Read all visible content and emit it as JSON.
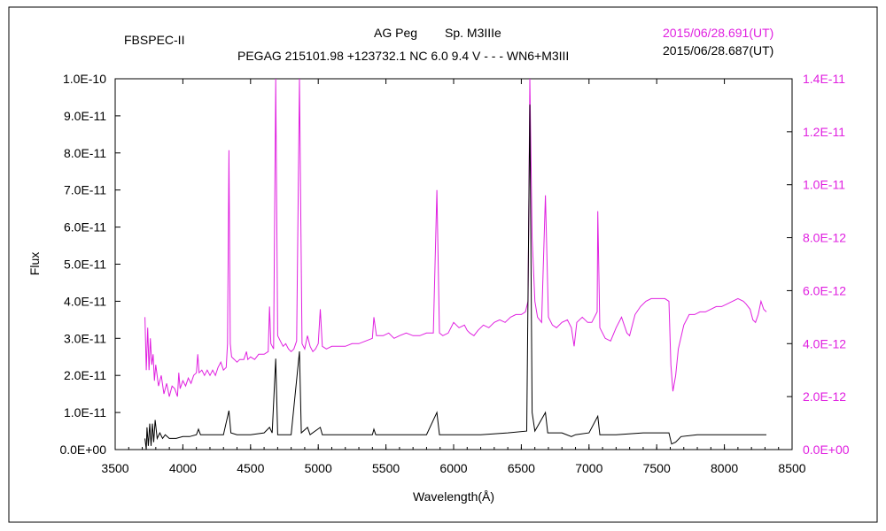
{
  "header": {
    "instrument": "FBSPEC-II",
    "star": "AG Peg",
    "sptype": "Sp. M3IIIe",
    "catalog": "PEGAG 215101.98 +123732.1 NC 6.0 9.4 V - - - WN6+M3III",
    "date_magenta": "2015/06/28.691(UT)",
    "date_black": "2015/06/28.687(UT)"
  },
  "colors": {
    "magenta": "#e020e0",
    "black": "#000000",
    "axis": "#000000"
  },
  "chart_data": {
    "type": "line",
    "xlabel": "Wavelength(Å)",
    "ylabel": "Flux",
    "xlim": [
      3500,
      8500
    ],
    "ylim_left": [
      0,
      1e-10
    ],
    "ylim_right": [
      0,
      1.4e-11
    ],
    "x_ticks": [
      "3500",
      "4000",
      "4500",
      "5000",
      "5500",
      "6000",
      "6500",
      "7000",
      "7500",
      "8000",
      "8500"
    ],
    "y_ticks_left": [
      "0.0E+00",
      "1.0E-11",
      "2.0E-11",
      "3.0E-11",
      "4.0E-11",
      "5.0E-11",
      "6.0E-11",
      "7.0E-11",
      "8.0E-11",
      "9.0E-11",
      "1.0E-10"
    ],
    "y_ticks_right": [
      "0.0E+00",
      "2.0E-12",
      "4.0E-12",
      "6.0E-12",
      "8.0E-12",
      "1.0E-11",
      "1.2E-11",
      "1.4E-11"
    ],
    "series": [
      {
        "name": "2015/06/28.691(UT)",
        "axis": "right",
        "color": "#e020e0",
        "points": [
          [
            3720,
            5e-12
          ],
          [
            3730,
            3e-12
          ],
          [
            3740,
            4.6e-12
          ],
          [
            3750,
            3e-12
          ],
          [
            3760,
            4.2e-12
          ],
          [
            3770,
            3.2e-12
          ],
          [
            3780,
            3.6e-12
          ],
          [
            3790,
            2.6e-12
          ],
          [
            3800,
            3.2e-12
          ],
          [
            3820,
            2.4e-12
          ],
          [
            3840,
            2.8e-12
          ],
          [
            3860,
            2.1e-12
          ],
          [
            3880,
            2.5e-12
          ],
          [
            3900,
            2e-12
          ],
          [
            3920,
            2.4e-12
          ],
          [
            3940,
            2.3e-12
          ],
          [
            3960,
            2e-12
          ],
          [
            3970,
            2.9e-12
          ],
          [
            3980,
            2.3e-12
          ],
          [
            4000,
            2.6e-12
          ],
          [
            4020,
            2.4e-12
          ],
          [
            4040,
            2.7e-12
          ],
          [
            4060,
            2.5e-12
          ],
          [
            4080,
            2.8e-12
          ],
          [
            4100,
            2.9e-12
          ],
          [
            4110,
            3.6e-12
          ],
          [
            4120,
            2.9e-12
          ],
          [
            4140,
            3e-12
          ],
          [
            4160,
            2.8e-12
          ],
          [
            4180,
            3e-12
          ],
          [
            4200,
            2.8e-12
          ],
          [
            4220,
            3e-12
          ],
          [
            4240,
            2.8e-12
          ],
          [
            4260,
            3.1e-12
          ],
          [
            4280,
            3.3e-12
          ],
          [
            4300,
            3e-12
          ],
          [
            4320,
            3.1e-12
          ],
          [
            4330,
            4e-12
          ],
          [
            4340,
            1.13e-11
          ],
          [
            4350,
            4e-12
          ],
          [
            4360,
            3.5e-12
          ],
          [
            4380,
            3.4e-12
          ],
          [
            4400,
            3.3e-12
          ],
          [
            4420,
            3.4e-12
          ],
          [
            4450,
            3.4e-12
          ],
          [
            4470,
            3.7e-12
          ],
          [
            4480,
            3.4e-12
          ],
          [
            4500,
            3.5e-12
          ],
          [
            4530,
            3.4e-12
          ],
          [
            4560,
            3.6e-12
          ],
          [
            4600,
            3.6e-12
          ],
          [
            4630,
            3.7e-12
          ],
          [
            4640,
            5.4e-12
          ],
          [
            4650,
            4e-12
          ],
          [
            4670,
            3.8e-12
          ],
          [
            4686,
            1.4e-11
          ],
          [
            4700,
            4.3e-12
          ],
          [
            4720,
            4.1e-12
          ],
          [
            4740,
            3.9e-12
          ],
          [
            4760,
            4e-12
          ],
          [
            4780,
            3.8e-12
          ],
          [
            4800,
            3.7e-12
          ],
          [
            4820,
            3.8e-12
          ],
          [
            4840,
            4.1e-12
          ],
          [
            4861,
            1.4e-11
          ],
          [
            4880,
            4e-12
          ],
          [
            4900,
            3.8e-12
          ],
          [
            4920,
            4.3e-12
          ],
          [
            4940,
            3.9e-12
          ],
          [
            4960,
            3.7e-12
          ],
          [
            4980,
            3.8e-12
          ],
          [
            5000,
            4e-12
          ],
          [
            5015,
            5.3e-12
          ],
          [
            5030,
            3.9e-12
          ],
          [
            5060,
            3.8e-12
          ],
          [
            5100,
            3.9e-12
          ],
          [
            5150,
            3.9e-12
          ],
          [
            5200,
            3.9e-12
          ],
          [
            5250,
            4e-12
          ],
          [
            5300,
            4e-12
          ],
          [
            5350,
            4.1e-12
          ],
          [
            5400,
            4.2e-12
          ],
          [
            5411,
            5e-12
          ],
          [
            5430,
            4.3e-12
          ],
          [
            5480,
            4.3e-12
          ],
          [
            5520,
            4.4e-12
          ],
          [
            5560,
            4.2e-12
          ],
          [
            5600,
            4.3e-12
          ],
          [
            5650,
            4.4e-12
          ],
          [
            5700,
            4.3e-12
          ],
          [
            5750,
            4.3e-12
          ],
          [
            5800,
            4.4e-12
          ],
          [
            5850,
            4.4e-12
          ],
          [
            5876,
            9.8e-12
          ],
          [
            5895,
            4.4e-12
          ],
          [
            5920,
            4.3e-12
          ],
          [
            5960,
            4.4e-12
          ],
          [
            6000,
            4.8e-12
          ],
          [
            6040,
            4.6e-12
          ],
          [
            6080,
            4.7e-12
          ],
          [
            6100,
            4.5e-12
          ],
          [
            6120,
            4.4e-12
          ],
          [
            6150,
            4.3e-12
          ],
          [
            6180,
            4.5e-12
          ],
          [
            6220,
            4.7e-12
          ],
          [
            6260,
            4.6e-12
          ],
          [
            6300,
            4.8e-12
          ],
          [
            6340,
            4.9e-12
          ],
          [
            6380,
            4.8e-12
          ],
          [
            6420,
            5e-12
          ],
          [
            6460,
            5.1e-12
          ],
          [
            6500,
            5.1e-12
          ],
          [
            6530,
            5.2e-12
          ],
          [
            6550,
            5.6e-12
          ],
          [
            6563,
            1.4e-11
          ],
          [
            6580,
            8e-12
          ],
          [
            6600,
            5.6e-12
          ],
          [
            6620,
            5e-12
          ],
          [
            6650,
            4.8e-12
          ],
          [
            6678,
            9.6e-12
          ],
          [
            6700,
            5e-12
          ],
          [
            6730,
            4.7e-12
          ],
          [
            6760,
            4.6e-12
          ],
          [
            6800,
            4.8e-12
          ],
          [
            6840,
            4.9e-12
          ],
          [
            6870,
            4.6e-12
          ],
          [
            6890,
            3.9e-12
          ],
          [
            6910,
            4.8e-12
          ],
          [
            6950,
            5e-12
          ],
          [
            6990,
            4.8e-12
          ],
          [
            7020,
            4.8e-12
          ],
          [
            7060,
            5.2e-12
          ],
          [
            7065,
            9e-12
          ],
          [
            7080,
            4.6e-12
          ],
          [
            7120,
            4.2e-12
          ],
          [
            7160,
            4.1e-12
          ],
          [
            7200,
            4.6e-12
          ],
          [
            7240,
            5e-12
          ],
          [
            7280,
            4.4e-12
          ],
          [
            7300,
            4.3e-12
          ],
          [
            7340,
            5.1e-12
          ],
          [
            7380,
            5.4e-12
          ],
          [
            7420,
            5.6e-12
          ],
          [
            7460,
            5.7e-12
          ],
          [
            7500,
            5.7e-12
          ],
          [
            7560,
            5.7e-12
          ],
          [
            7590,
            5.6e-12
          ],
          [
            7605,
            3.2e-12
          ],
          [
            7620,
            2.2e-12
          ],
          [
            7640,
            2.8e-12
          ],
          [
            7660,
            3.8e-12
          ],
          [
            7700,
            4.7e-12
          ],
          [
            7740,
            5.1e-12
          ],
          [
            7780,
            5.1e-12
          ],
          [
            7820,
            5.2e-12
          ],
          [
            7860,
            5.2e-12
          ],
          [
            7900,
            5.3e-12
          ],
          [
            7940,
            5.4e-12
          ],
          [
            7980,
            5.4e-12
          ],
          [
            8020,
            5.5e-12
          ],
          [
            8060,
            5.6e-12
          ],
          [
            8100,
            5.7e-12
          ],
          [
            8140,
            5.6e-12
          ],
          [
            8160,
            5.5e-12
          ],
          [
            8190,
            5.3e-12
          ],
          [
            8210,
            4.9e-12
          ],
          [
            8230,
            4.8e-12
          ],
          [
            8250,
            5.1e-12
          ],
          [
            8270,
            5.6e-12
          ],
          [
            8290,
            5.3e-12
          ],
          [
            8310,
            5.2e-12
          ]
        ]
      },
      {
        "name": "2015/06/28.687(UT)",
        "axis": "left",
        "color": "#000000",
        "points": [
          [
            3720,
            3e-12
          ],
          [
            3730,
            0.0
          ],
          [
            3735,
            6e-12
          ],
          [
            3745,
            1e-12
          ],
          [
            3755,
            7e-12
          ],
          [
            3765,
            1e-12
          ],
          [
            3775,
            7e-12
          ],
          [
            3785,
            2e-12
          ],
          [
            3795,
            8e-12
          ],
          [
            3810,
            3e-12
          ],
          [
            3830,
            4.5e-12
          ],
          [
            3850,
            3e-12
          ],
          [
            3870,
            4e-12
          ],
          [
            3900,
            3e-12
          ],
          [
            3950,
            3e-12
          ],
          [
            4000,
            3.5e-12
          ],
          [
            4050,
            3.5e-12
          ],
          [
            4100,
            4e-12
          ],
          [
            4115,
            5.5e-12
          ],
          [
            4130,
            4e-12
          ],
          [
            4200,
            4e-12
          ],
          [
            4300,
            4e-12
          ],
          [
            4340,
            1.05e-11
          ],
          [
            4355,
            4.5e-12
          ],
          [
            4400,
            4e-12
          ],
          [
            4500,
            4e-12
          ],
          [
            4600,
            4.5e-12
          ],
          [
            4640,
            6e-12
          ],
          [
            4660,
            4.5e-12
          ],
          [
            4686,
            2.45e-11
          ],
          [
            4700,
            4e-12
          ],
          [
            4800,
            4e-12
          ],
          [
            4861,
            2.65e-11
          ],
          [
            4875,
            4.5e-12
          ],
          [
            4921,
            6e-12
          ],
          [
            4940,
            4e-12
          ],
          [
            5015,
            6e-12
          ],
          [
            5030,
            4e-12
          ],
          [
            5200,
            4e-12
          ],
          [
            5400,
            4e-12
          ],
          [
            5411,
            5.5e-12
          ],
          [
            5425,
            4e-12
          ],
          [
            5600,
            4e-12
          ],
          [
            5800,
            4e-12
          ],
          [
            5876,
            1e-11
          ],
          [
            5895,
            4e-12
          ],
          [
            6000,
            4e-12
          ],
          [
            6200,
            4e-12
          ],
          [
            6400,
            4.5e-12
          ],
          [
            6540,
            5e-12
          ],
          [
            6563,
            9.3e-11
          ],
          [
            6580,
            1e-11
          ],
          [
            6600,
            5e-12
          ],
          [
            6678,
            1e-11
          ],
          [
            6695,
            4.5e-12
          ],
          [
            6800,
            4.5e-12
          ],
          [
            6870,
            3.5e-12
          ],
          [
            6900,
            4e-12
          ],
          [
            7000,
            4.5e-12
          ],
          [
            7065,
            9e-12
          ],
          [
            7080,
            4e-12
          ],
          [
            7200,
            4e-12
          ],
          [
            7400,
            4.5e-12
          ],
          [
            7590,
            4.5e-12
          ],
          [
            7610,
            1.5e-12
          ],
          [
            7640,
            2e-12
          ],
          [
            7680,
            3.5e-12
          ],
          [
            7800,
            4e-12
          ],
          [
            8000,
            4e-12
          ],
          [
            8200,
            4e-12
          ],
          [
            8310,
            4e-12
          ]
        ]
      }
    ]
  }
}
